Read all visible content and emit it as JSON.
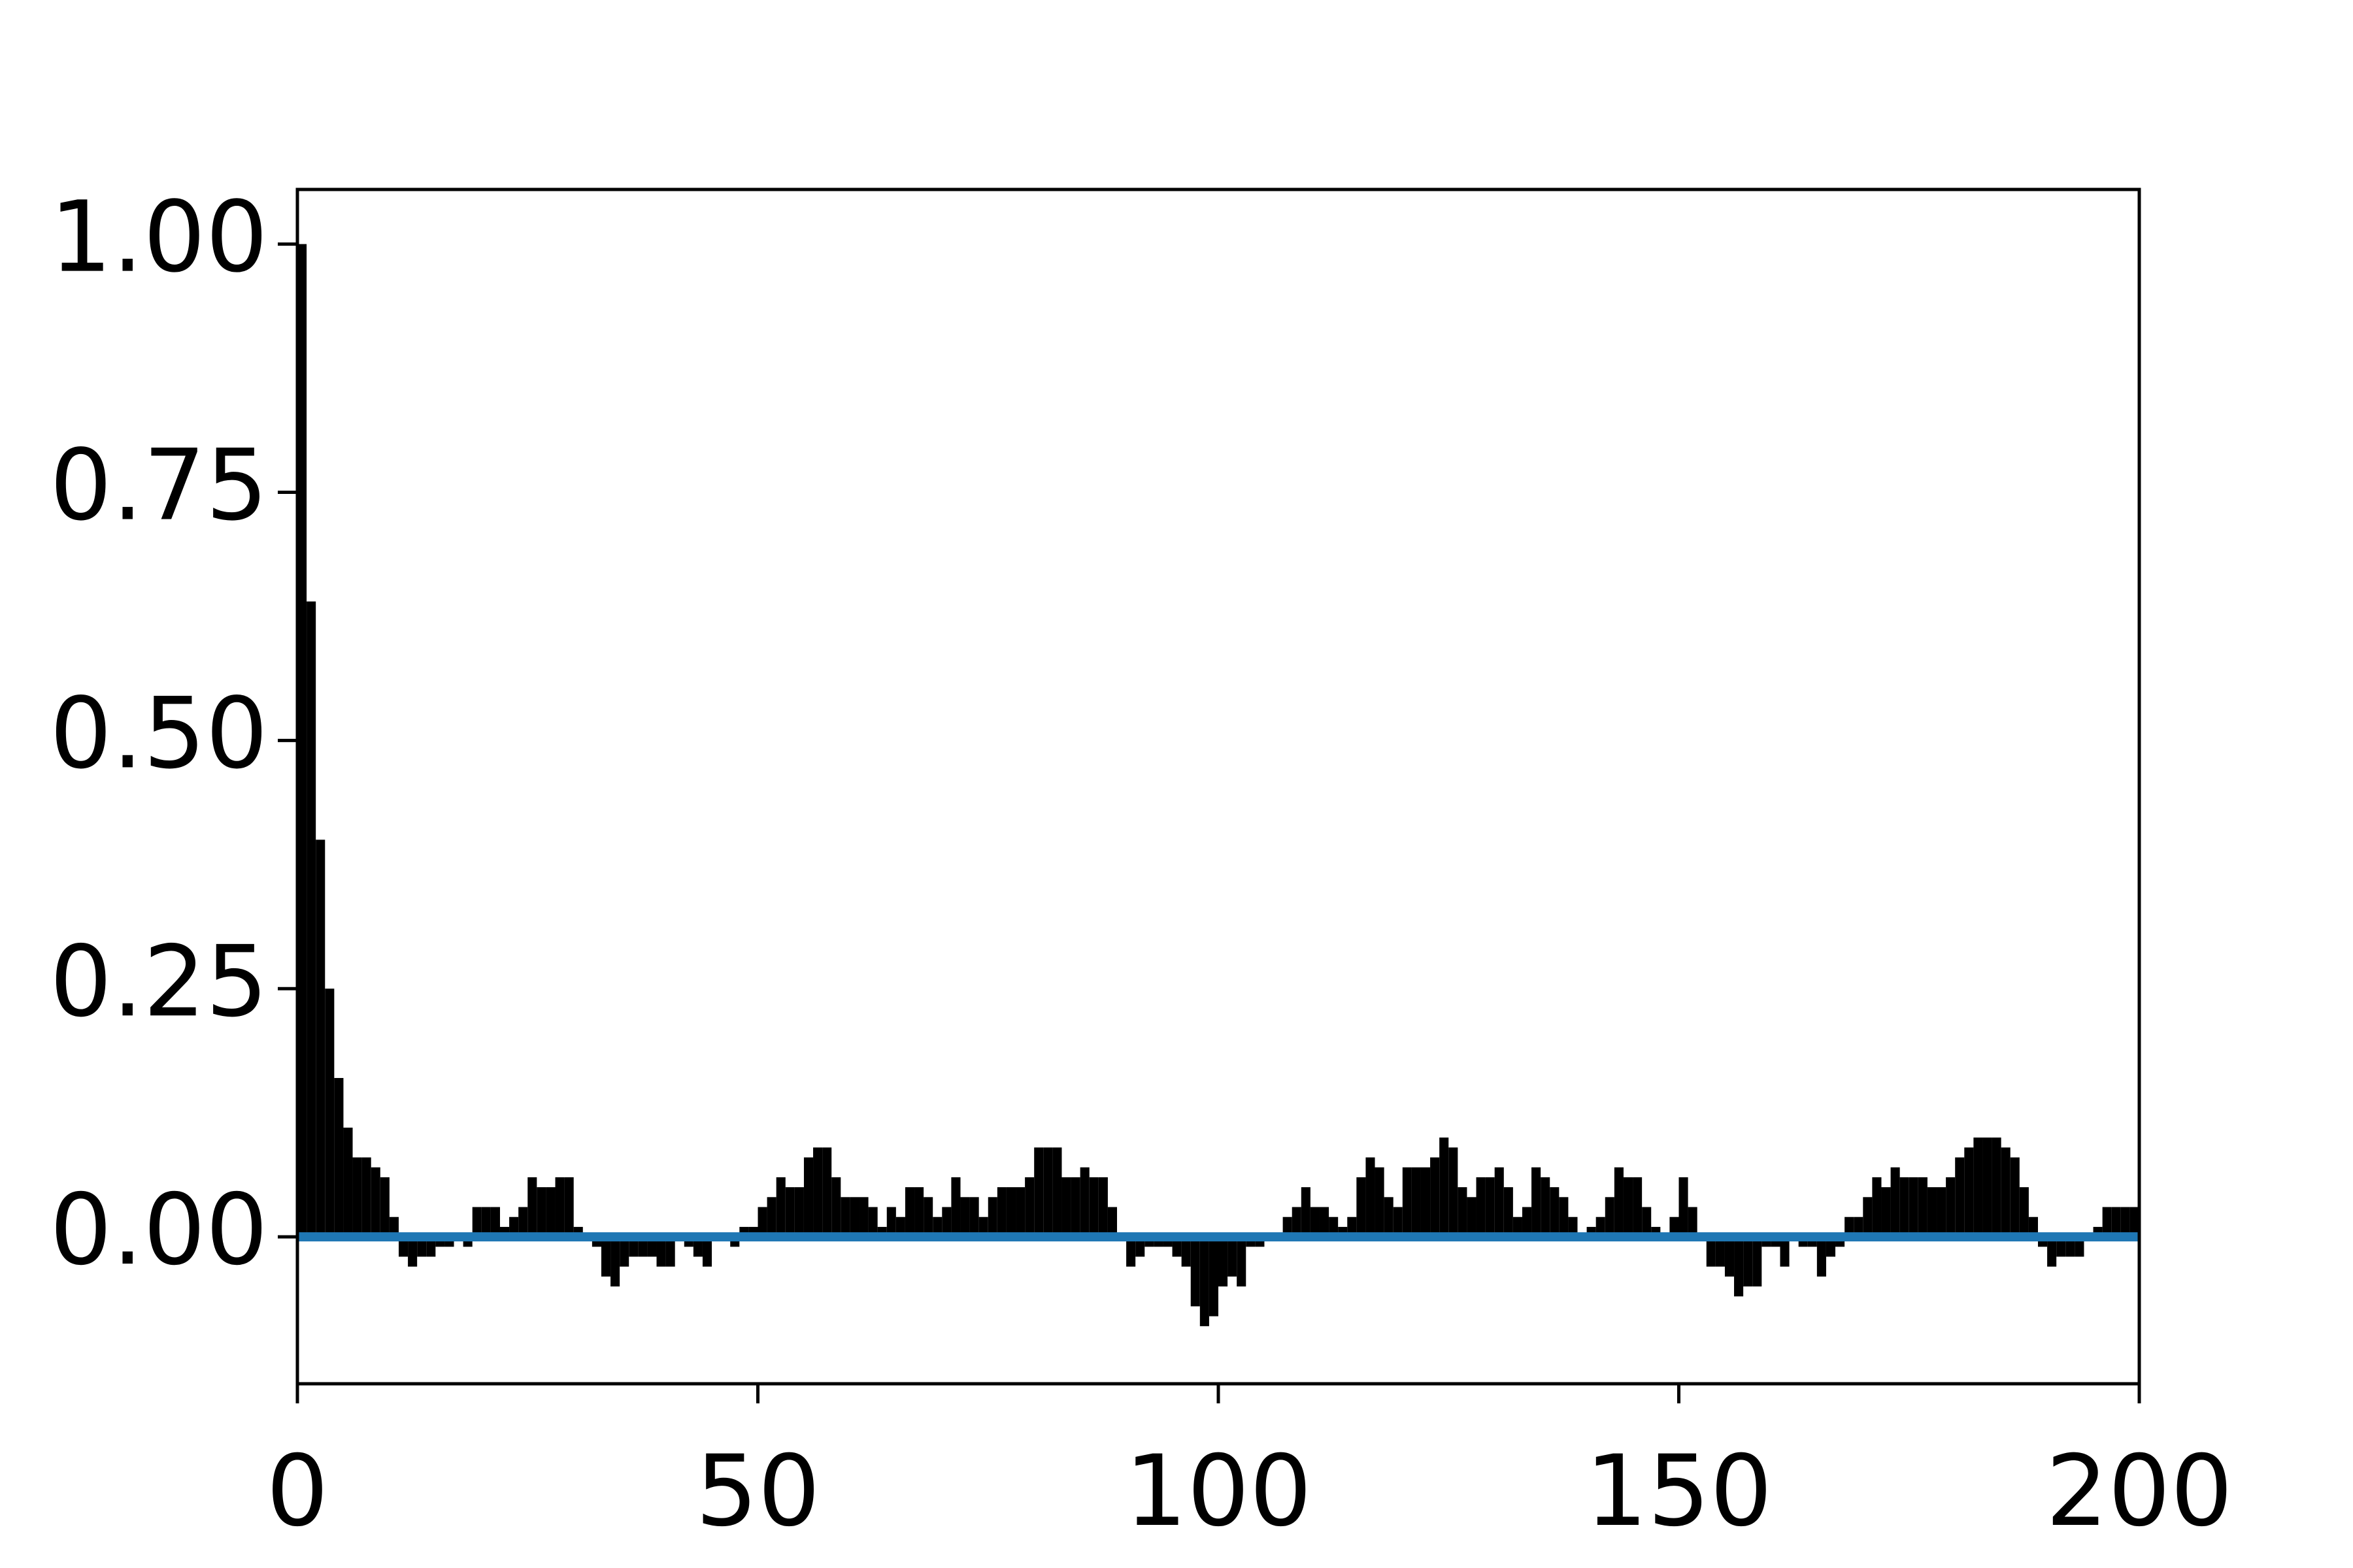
{
  "chart_data": {
    "type": "bar",
    "color": "#000000",
    "x": [
      0,
      1,
      2,
      3,
      4,
      5,
      6,
      7,
      8,
      9,
      10,
      11,
      12,
      13,
      14,
      15,
      16,
      17,
      18,
      19,
      20,
      21,
      22,
      23,
      24,
      25,
      26,
      27,
      28,
      29,
      30,
      31,
      32,
      33,
      34,
      35,
      36,
      37,
      38,
      39,
      40,
      41,
      42,
      43,
      44,
      45,
      46,
      47,
      48,
      49,
      50,
      51,
      52,
      53,
      54,
      55,
      56,
      57,
      58,
      59,
      60,
      61,
      62,
      63,
      64,
      65,
      66,
      67,
      68,
      69,
      70,
      71,
      72,
      73,
      74,
      75,
      76,
      77,
      78,
      79,
      80,
      81,
      82,
      83,
      84,
      85,
      86,
      87,
      88,
      89,
      90,
      91,
      92,
      93,
      94,
      95,
      96,
      97,
      98,
      99,
      100,
      101,
      102,
      103,
      104,
      105,
      106,
      107,
      108,
      109,
      110,
      111,
      112,
      113,
      114,
      115,
      116,
      117,
      118,
      119,
      120,
      121,
      122,
      123,
      124,
      125,
      126,
      127,
      128,
      129,
      130,
      131,
      132,
      133,
      134,
      135,
      136,
      137,
      138,
      139,
      140,
      141,
      142,
      143,
      144,
      145,
      146,
      147,
      148,
      149,
      150,
      151,
      152,
      153,
      154,
      155,
      156,
      157,
      158,
      159,
      160,
      161,
      162,
      163,
      164,
      165,
      166,
      167,
      168,
      169,
      170,
      171,
      172,
      173,
      174,
      175,
      176,
      177,
      178,
      179,
      180,
      181,
      182,
      183,
      184,
      185,
      186,
      187,
      188,
      189,
      190,
      191,
      192,
      193,
      194,
      195,
      196,
      197,
      198,
      199
    ],
    "values": [
      1.0,
      0.64,
      0.4,
      0.25,
      0.16,
      0.11,
      0.08,
      0.08,
      0.07,
      0.06,
      0.02,
      -0.02,
      -0.03,
      -0.02,
      -0.02,
      -0.01,
      -0.01,
      0.0,
      -0.01,
      0.03,
      0.03,
      0.03,
      0.01,
      0.02,
      0.03,
      0.06,
      0.05,
      0.05,
      0.06,
      0.06,
      0.01,
      0.0,
      -0.01,
      -0.04,
      -0.05,
      -0.03,
      -0.02,
      -0.02,
      -0.02,
      -0.03,
      -0.03,
      0.0,
      -0.01,
      -0.02,
      -0.03,
      0.0,
      0.0,
      -0.01,
      0.01,
      0.01,
      0.03,
      0.04,
      0.06,
      0.05,
      0.05,
      0.08,
      0.09,
      0.09,
      0.06,
      0.04,
      0.04,
      0.04,
      0.03,
      0.01,
      0.03,
      0.02,
      0.05,
      0.05,
      0.04,
      0.02,
      0.03,
      0.06,
      0.04,
      0.04,
      0.02,
      0.04,
      0.05,
      0.05,
      0.05,
      0.06,
      0.09,
      0.09,
      0.09,
      0.06,
      0.06,
      0.07,
      0.06,
      0.06,
      0.03,
      0.0,
      -0.03,
      -0.02,
      -0.01,
      -0.01,
      -0.01,
      -0.02,
      -0.03,
      -0.07,
      -0.09,
      -0.08,
      -0.05,
      -0.04,
      -0.05,
      -0.01,
      -0.01,
      0.0,
      0.0,
      0.02,
      0.03,
      0.05,
      0.03,
      0.03,
      0.02,
      0.01,
      0.02,
      0.06,
      0.08,
      0.07,
      0.04,
      0.03,
      0.07,
      0.07,
      0.07,
      0.08,
      0.1,
      0.09,
      0.05,
      0.04,
      0.06,
      0.06,
      0.07,
      0.05,
      0.02,
      0.03,
      0.07,
      0.06,
      0.05,
      0.04,
      0.02,
      0.0,
      0.01,
      0.02,
      0.04,
      0.07,
      0.06,
      0.06,
      0.03,
      0.01,
      0.0,
      0.02,
      0.06,
      0.03,
      0.0,
      -0.03,
      -0.03,
      -0.04,
      -0.06,
      -0.05,
      -0.05,
      -0.01,
      -0.01,
      -0.03,
      0.0,
      -0.01,
      -0.01,
      -0.04,
      -0.02,
      -0.01,
      0.02,
      0.02,
      0.04,
      0.06,
      0.05,
      0.07,
      0.06,
      0.06,
      0.06,
      0.05,
      0.05,
      0.06,
      0.08,
      0.09,
      0.1,
      0.1,
      0.1,
      0.09,
      0.08,
      0.05,
      0.02,
      -0.01,
      -0.03,
      -0.02,
      -0.02,
      -0.02,
      0.0,
      0.01,
      0.03,
      0.03,
      0.03,
      0.03
    ],
    "hline": {
      "value": 0,
      "color": "#1f77b4"
    },
    "xlim": [
      0,
      200
    ],
    "xticks": [
      0,
      50,
      100,
      150,
      200
    ],
    "ylim": [
      -0.148,
      1.055
    ],
    "yticks": [
      {
        "value": 0,
        "label": "0.00"
      },
      {
        "value": 0.25,
        "label": "0.25"
      },
      {
        "value": 0.5,
        "label": "0.50"
      },
      {
        "value": 0.75,
        "label": "0.75"
      },
      {
        "value": 1,
        "label": "1.00"
      }
    ]
  }
}
